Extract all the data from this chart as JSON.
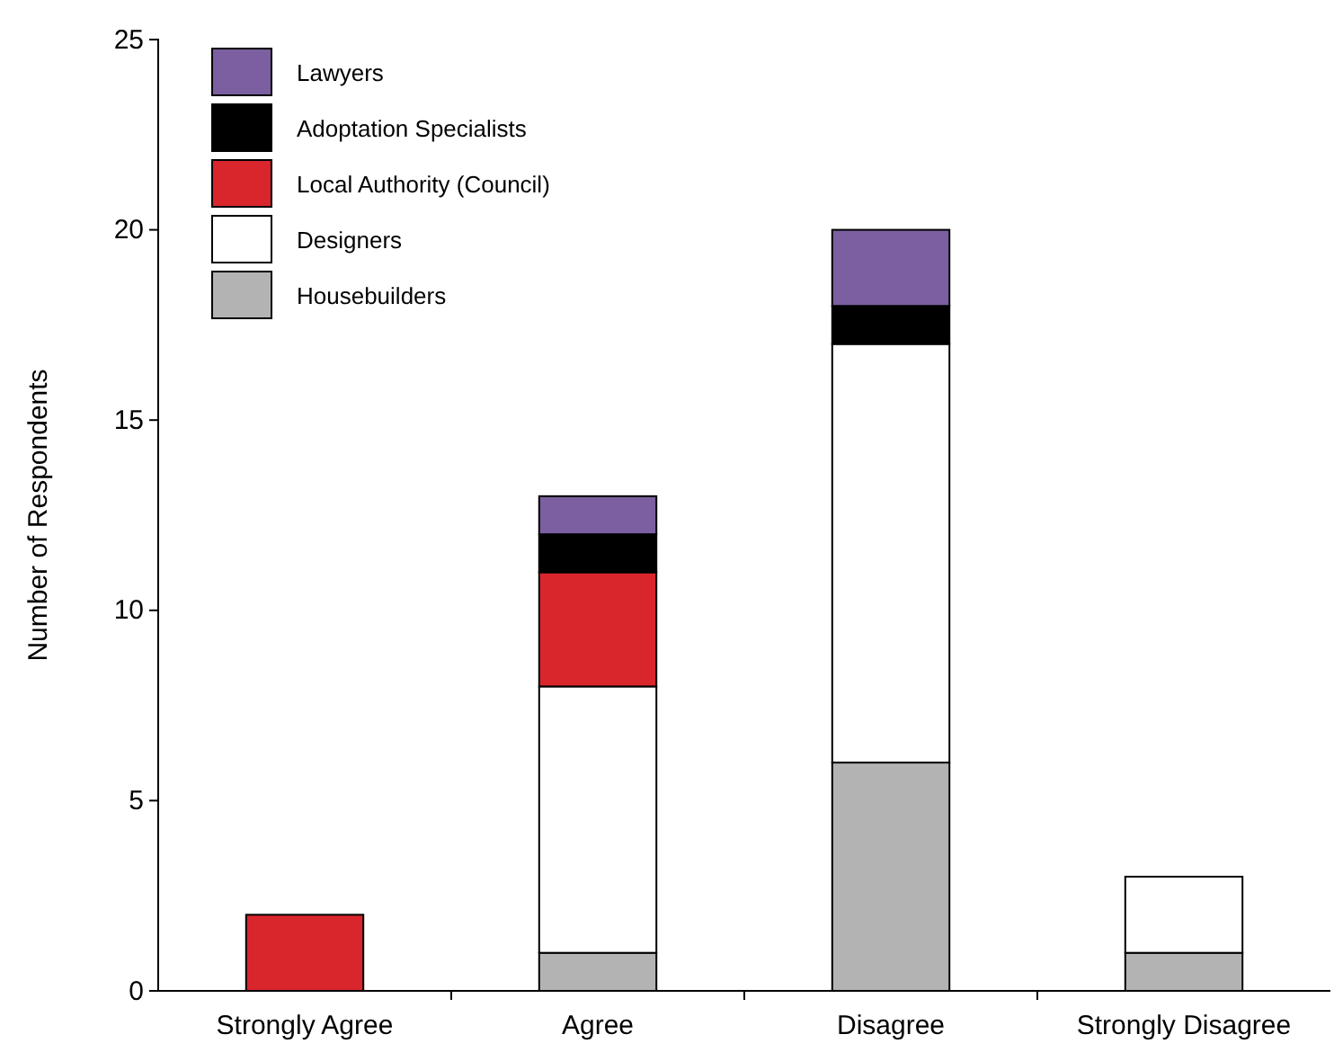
{
  "chart_data": {
    "type": "bar",
    "stacked": true,
    "ylabel": "Number of Respondents",
    "categories": [
      "Strongly Agree",
      "Agree",
      "Disagree",
      "Strongly Disagree"
    ],
    "ylim": [
      0,
      25
    ],
    "yticks": [
      0,
      5,
      10,
      15,
      20,
      25
    ],
    "legend": "top left",
    "grid": false,
    "series": [
      {
        "name": "Housebuilders",
        "color": "#b3b3b3",
        "values": [
          0,
          1,
          6,
          1
        ]
      },
      {
        "name": "Designers",
        "color": "#ffffff",
        "values": [
          0,
          7,
          11,
          2
        ]
      },
      {
        "name": "Local Authority (Council)",
        "color": "#d8262c",
        "values": [
          2,
          3,
          0,
          0
        ]
      },
      {
        "name": "Adoptation Specialists",
        "color": "#000000",
        "values": [
          0,
          1,
          1,
          0
        ]
      },
      {
        "name": "Lawyers",
        "color": "#7b5fa0",
        "values": [
          0,
          1,
          2,
          0
        ]
      }
    ]
  }
}
